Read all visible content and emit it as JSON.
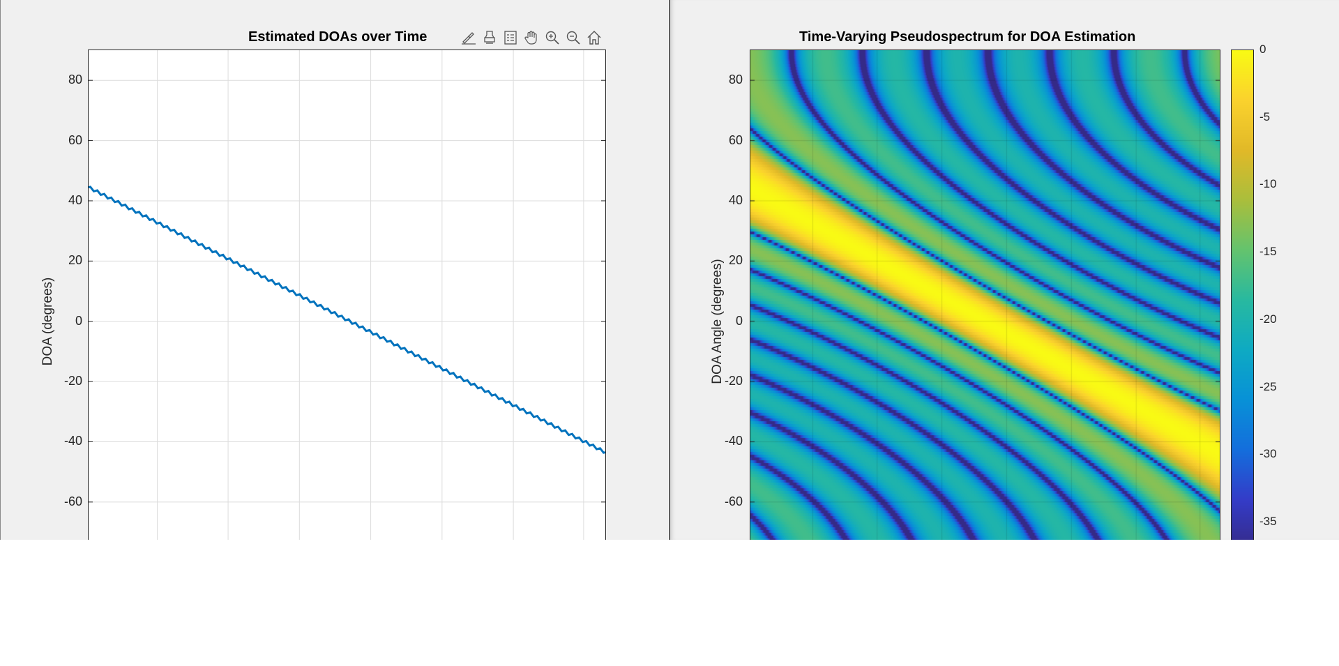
{
  "figures": [
    {
      "title": "Estimated DOAs over Time",
      "ylabel": "DOA (degrees)",
      "toolbar": [
        {
          "name": "brush-icon",
          "label": ""
        },
        {
          "name": "data-tips-icon",
          "label": ""
        },
        {
          "name": "legend-icon",
          "label": ""
        },
        {
          "name": "pan-icon",
          "label": ""
        },
        {
          "name": "zoom-in-icon",
          "label": ""
        },
        {
          "name": "zoom-out-icon",
          "label": ""
        },
        {
          "name": "home-icon",
          "label": ""
        }
      ]
    },
    {
      "title": "Time-Varying Pseudospectrum for DOA Estimation",
      "ylabel": "DOA Angle (degrees)",
      "colorbar_ticks": [
        "0",
        "-5",
        "-10",
        "-15",
        "-20",
        "-25",
        "-30",
        "-35"
      ]
    }
  ],
  "chart_data": [
    {
      "type": "line",
      "title": "Estimated DOAs over Time",
      "xlabel": "",
      "ylabel": "DOA (degrees)",
      "ylim": [
        -73,
        90
      ],
      "yticks": [
        80,
        60,
        40,
        20,
        0,
        -20,
        -40,
        -60
      ],
      "grid": true,
      "xlim": [
        0,
        1
      ],
      "series": [
        {
          "color": "#0072bd",
          "x": [
            0,
            1
          ],
          "y": [
            44.5,
            -43.5
          ]
        }
      ]
    },
    {
      "type": "heatmap",
      "title": "Time-Varying Pseudospectrum for DOA Estimation",
      "xlabel": "",
      "ylabel": "DOA Angle (degrees)",
      "ylim": [
        -73,
        90
      ],
      "yticks": [
        80,
        60,
        40,
        20,
        0,
        -20,
        -40,
        -60
      ],
      "colormap": "parula",
      "clim": [
        -37,
        0
      ],
      "colorbar_ticks": [
        0,
        -5,
        -10,
        -15,
        -20,
        -25,
        -30,
        -35
      ]
    }
  ]
}
